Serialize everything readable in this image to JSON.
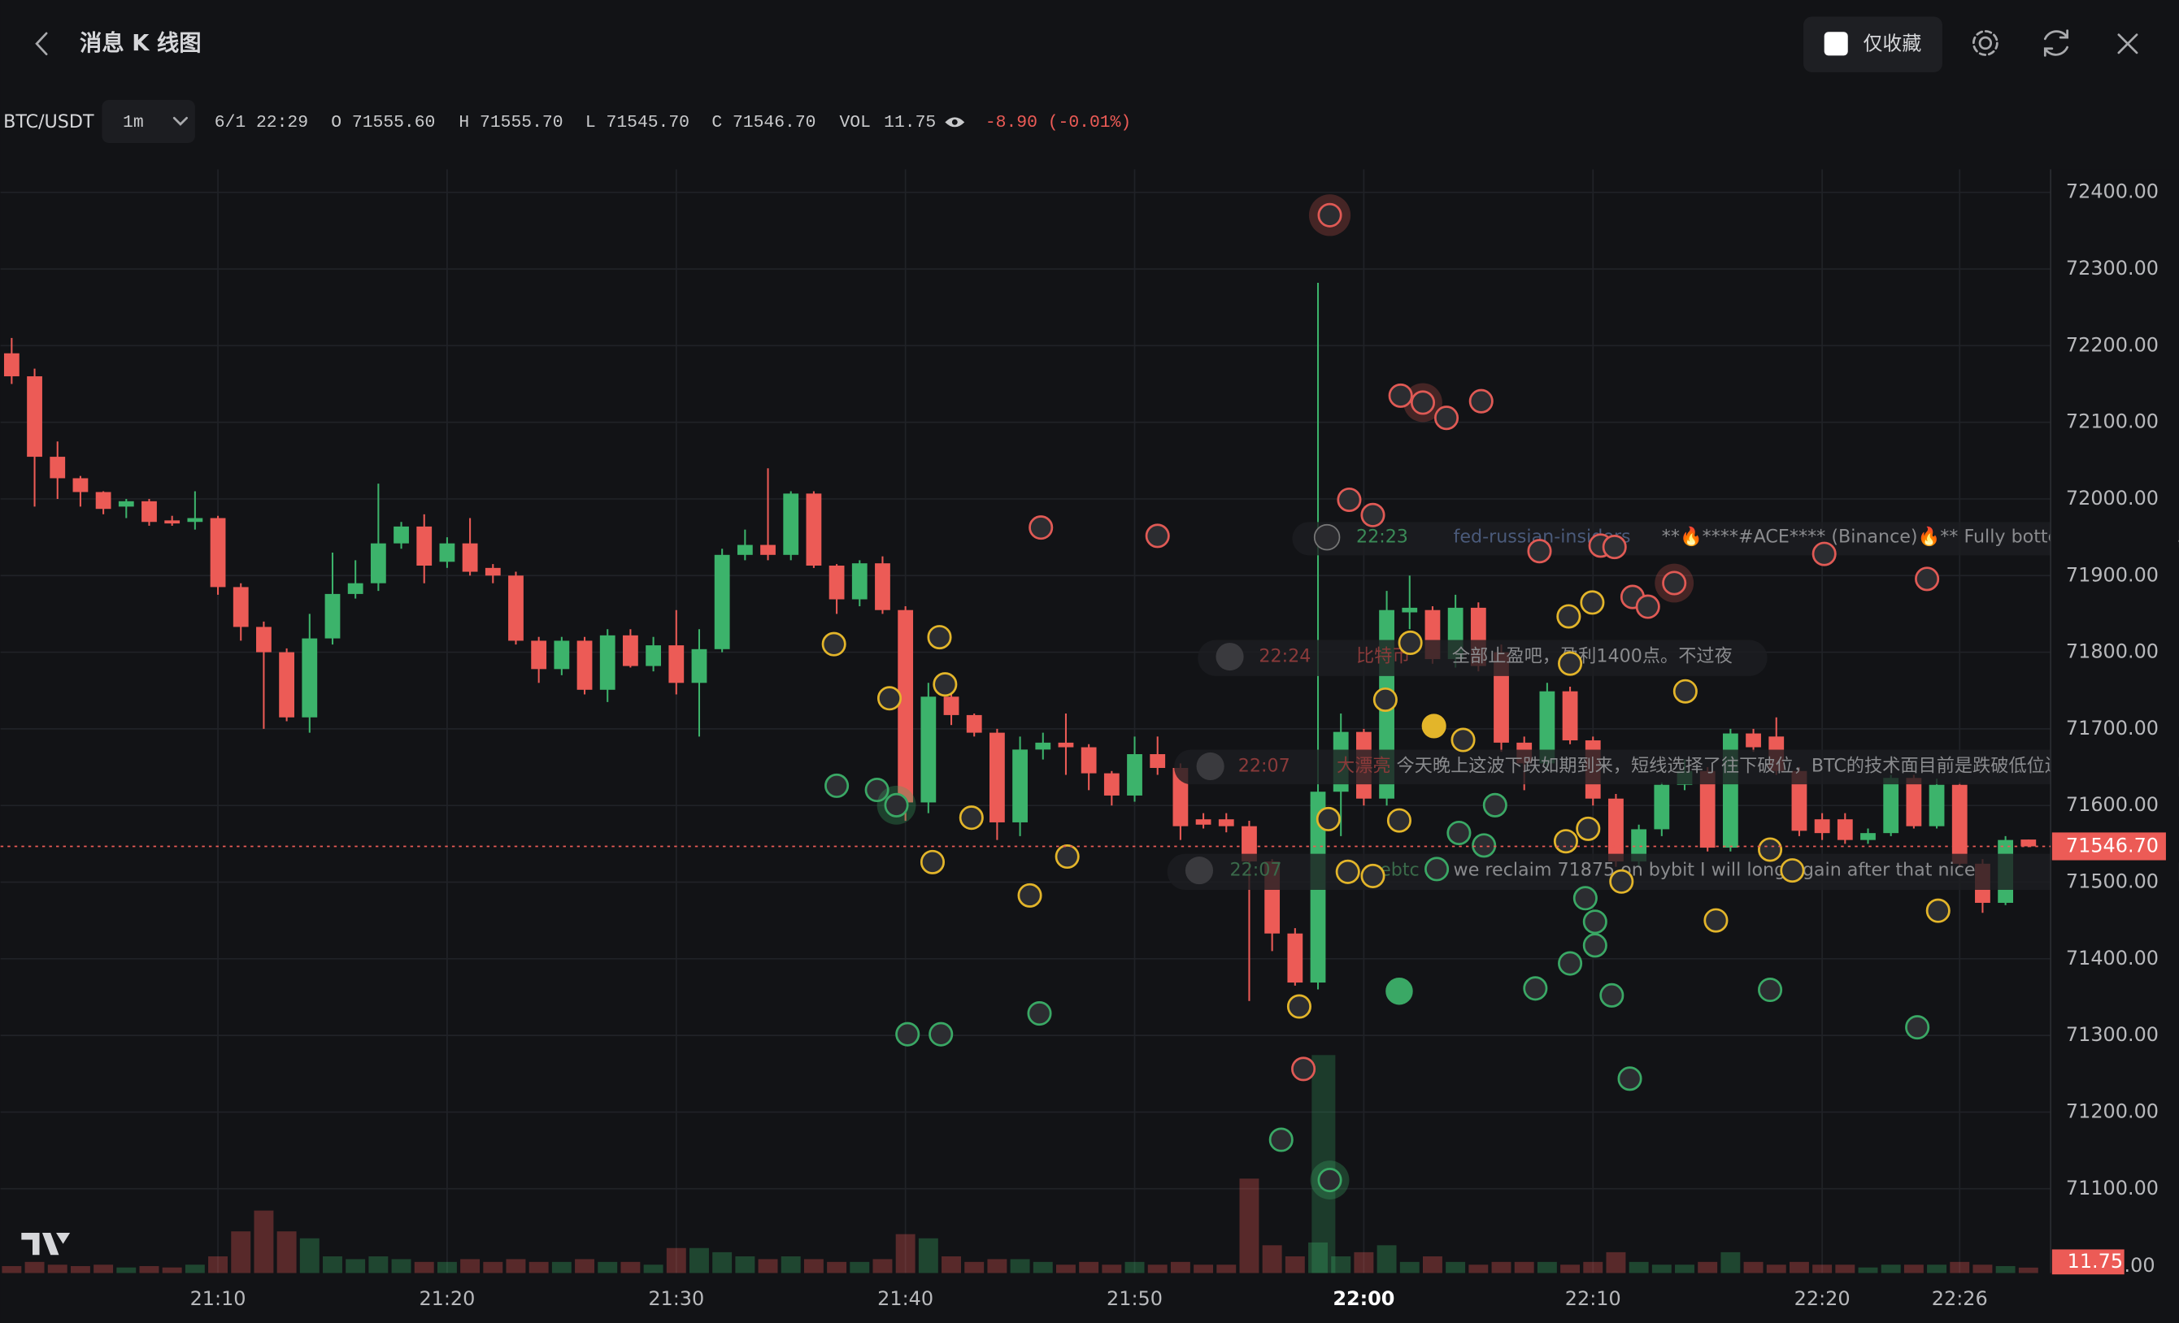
{
  "header": {
    "title": "消息 K 线图",
    "favorites_only": "仅收藏"
  },
  "toolbar": {
    "symbol": "BTC/USDT",
    "interval": "1m",
    "time": "6/1 22:29",
    "quote": [
      {
        "key": "O",
        "value": "71555.60"
      },
      {
        "key": "H",
        "value": "71555.70"
      },
      {
        "key": "L",
        "value": "71545.70"
      },
      {
        "key": "C",
        "value": "71546.70"
      },
      {
        "key": "VOL",
        "value": "11.75"
      }
    ],
    "change": "-8.90 (-0.01%)"
  },
  "news": [
    {
      "time": "22:23",
      "author": "fed-russian-insiders",
      "text": "**🔥****#ACE**** (Binance)🔥** Fully bottomed. Accumula"
    },
    {
      "time": "22:24",
      "author": "比特币",
      "text": "全部止盈吧，盈利1400点。不过夜"
    },
    {
      "time": "22:07",
      "author": "大漂亮",
      "text": "今天晚上这波下跌如期到来，短线选择了往下破位，BTC的技术面目前是跌破低位边界后的"
    },
    {
      "time": "22:07",
      "author": "rebtc",
      "text": "we reclaim 71875 on bybit I will long again after that nice"
    }
  ],
  "chart_data": {
    "type": "candlestick",
    "up_color": "#3cb36b",
    "down_color": "#ec5b56",
    "grid": true,
    "x": [
      "21:01",
      "21:02",
      "21:03",
      "21:04",
      "21:05",
      "21:06",
      "21:07",
      "21:08",
      "21:09",
      "21:10",
      "21:11",
      "21:12",
      "21:13",
      "21:14",
      "21:15",
      "21:16",
      "21:17",
      "21:18",
      "21:19",
      "21:20",
      "21:21",
      "21:22",
      "21:23",
      "21:24",
      "21:25",
      "21:26",
      "21:27",
      "21:28",
      "21:29",
      "21:30",
      "21:31",
      "21:32",
      "21:33",
      "21:34",
      "21:35",
      "21:36",
      "21:37",
      "21:38",
      "21:39",
      "21:40",
      "21:41",
      "21:42",
      "21:43",
      "21:44",
      "21:45",
      "21:46",
      "21:47",
      "21:48",
      "21:49",
      "21:50",
      "21:51",
      "21:52",
      "21:53",
      "21:54",
      "21:55",
      "21:56",
      "21:57",
      "21:58",
      "21:59",
      "22:00",
      "22:01",
      "22:02",
      "22:03",
      "22:04",
      "22:05",
      "22:06",
      "22:07",
      "22:08",
      "22:09",
      "22:10",
      "22:11",
      "22:12",
      "22:13",
      "22:14",
      "22:15",
      "22:16",
      "22:17",
      "22:18",
      "22:19",
      "22:20",
      "22:21",
      "22:22",
      "22:23",
      "22:24",
      "22:25",
      "22:26",
      "22:27",
      "22:28",
      "22:29"
    ],
    "open": [
      72190,
      72160,
      72055,
      72027,
      72009,
      71990,
      71997,
      71972,
      71970,
      71975,
      71885,
      71833,
      71800,
      71715,
      71818,
      71876,
      71890,
      71942,
      71964,
      71918,
      71942,
      71910,
      71900,
      71815,
      71778,
      71815,
      71751,
      71822,
      71782,
      71809,
      71760,
      71804,
      71927,
      71940,
      71927,
      72007,
      71913,
      71869,
      71916,
      71855,
      71604,
      71742,
      71718,
      71695,
      71578,
      71673,
      71682,
      71676,
      71642,
      71613,
      71667,
      71649,
      71582,
      71582,
      71573,
      71527,
      71433,
      71369,
      71618,
      71696,
      71609,
      71852,
      71855,
      71791,
      71858,
      71800,
      71682,
      71655,
      71749,
      71685,
      71609,
      71527,
      71569,
      71627,
      71645,
      71545,
      71694,
      71690,
      71645,
      71582,
      71582,
      71555,
      71564,
      71636,
      71573,
      71627,
      71524,
      71473,
      71555.6
    ],
    "high": [
      72210,
      72170,
      72075,
      72030,
      72010,
      72000,
      72000,
      71978,
      72010,
      71978,
      71890,
      71840,
      71805,
      71850,
      71930,
      71920,
      72020,
      71970,
      71980,
      71950,
      71975,
      71915,
      71905,
      71820,
      71820,
      71820,
      71830,
      71830,
      71820,
      71855,
      71830,
      71935,
      71960,
      72040,
      72010,
      72010,
      71915,
      71920,
      71925,
      71860,
      71760,
      71750,
      71720,
      71700,
      71690,
      71695,
      71720,
      71680,
      71645,
      71690,
      71690,
      71655,
      71590,
      71590,
      71580,
      71530,
      71440,
      72282,
      71720,
      71700,
      71880,
      71900,
      71860,
      71875,
      71865,
      71810,
      71690,
      71760,
      71755,
      71690,
      71615,
      71575,
      71630,
      71660,
      71650,
      71700,
      71700,
      71715,
      71650,
      71590,
      71590,
      71570,
      71640,
      71640,
      71635,
      71630,
      71530,
      71560,
      71555.7
    ],
    "low": [
      72150,
      71990,
      72000,
      71990,
      71980,
      71975,
      71965,
      71965,
      71960,
      71875,
      71815,
      71700,
      71710,
      71695,
      71810,
      71870,
      71880,
      71935,
      71890,
      71910,
      71900,
      71890,
      71810,
      71760,
      71770,
      71745,
      71735,
      71780,
      71775,
      71745,
      71690,
      71800,
      71920,
      71920,
      71920,
      71910,
      71850,
      71860,
      71850,
      71580,
      71590,
      71705,
      71690,
      71555,
      71560,
      71660,
      71640,
      71620,
      71600,
      71605,
      71640,
      71555,
      71570,
      71565,
      71345,
      71410,
      71365,
      71360,
      71560,
      71600,
      71600,
      71830,
      71785,
      71780,
      71775,
      71670,
      71620,
      71645,
      71680,
      71600,
      71520,
      71520,
      71560,
      71620,
      71540,
      71540,
      71670,
      71640,
      71560,
      71555,
      71550,
      71550,
      71560,
      71570,
      71570,
      71520,
      71460,
      71470,
      71545.7
    ],
    "close": [
      72160,
      72055,
      72027,
      72009,
      71987,
      71997,
      71970,
      71968,
      71975,
      71885,
      71833,
      71800,
      71715,
      71818,
      71876,
      71890,
      71942,
      71964,
      71913,
      71942,
      71905,
      71900,
      71815,
      71778,
      71815,
      71751,
      71822,
      71782,
      71809,
      71760,
      71804,
      71927,
      71940,
      71927,
      72007,
      71913,
      71869,
      71916,
      71855,
      71604,
      71742,
      71718,
      71695,
      71578,
      71673,
      71682,
      71676,
      71642,
      71613,
      71667,
      71649,
      71573,
      71575,
      71573,
      71527,
      71433,
      71369,
      71618,
      71696,
      71609,
      71855,
      71858,
      71791,
      71858,
      71782,
      71682,
      71655,
      71749,
      71685,
      71609,
      71527,
      71569,
      71627,
      71645,
      71545,
      71694,
      71676,
      71645,
      71567,
      71564,
      71555,
      71564,
      71636,
      71573,
      71627,
      71524,
      71473,
      71555,
      71546.7
    ],
    "volume": [
      15,
      24,
      18,
      15,
      18,
      12,
      15,
      12,
      18,
      36,
      90,
      135,
      90,
      75,
      36,
      30,
      36,
      30,
      24,
      24,
      30,
      24,
      30,
      24,
      24,
      30,
      24,
      24,
      18,
      54,
      54,
      45,
      36,
      30,
      36,
      30,
      24,
      24,
      30,
      84,
      75,
      36,
      24,
      30,
      30,
      24,
      18,
      24,
      18,
      24,
      18,
      24,
      18,
      18,
      204,
      60,
      36,
      66,
      36,
      45,
      60,
      24,
      36,
      24,
      18,
      24,
      24,
      24,
      18,
      24,
      45,
      24,
      18,
      18,
      24,
      45,
      24,
      18,
      24,
      18,
      18,
      12,
      18,
      18,
      18,
      24,
      18,
      15,
      11.75
    ],
    "last_close_label": "71546.70",
    "ylim": [
      70990,
      72430
    ],
    "yticks": [
      {
        "value": 72400,
        "label": "72400.00"
      },
      {
        "value": 72300,
        "label": "72300.00"
      },
      {
        "value": 72200,
        "label": "72200.00"
      },
      {
        "value": 72100,
        "label": "72100.00"
      },
      {
        "value": 72000,
        "label": "72000.00"
      },
      {
        "value": 71900,
        "label": "71900.00"
      },
      {
        "value": 71800,
        "label": "71800.00"
      },
      {
        "value": 71700,
        "label": "71700.00"
      },
      {
        "value": 71600,
        "label": "71600.00"
      },
      {
        "value": 71500,
        "label": "71500.00"
      },
      {
        "value": 71400,
        "label": "71400.00"
      },
      {
        "value": 71300,
        "label": "71300.00"
      },
      {
        "value": 71200,
        "label": "71200.00"
      },
      {
        "value": 71100,
        "label": "71100.00"
      }
    ],
    "volume_ylim": [
      0,
      300
    ],
    "volume_yticks": [
      {
        "value": 0,
        "label": "0.00"
      }
    ],
    "xticks": [
      "21:10",
      "21:20",
      "21:30",
      "21:40",
      "21:50",
      "22:00",
      "22:10",
      "22:20",
      "22:26"
    ]
  }
}
